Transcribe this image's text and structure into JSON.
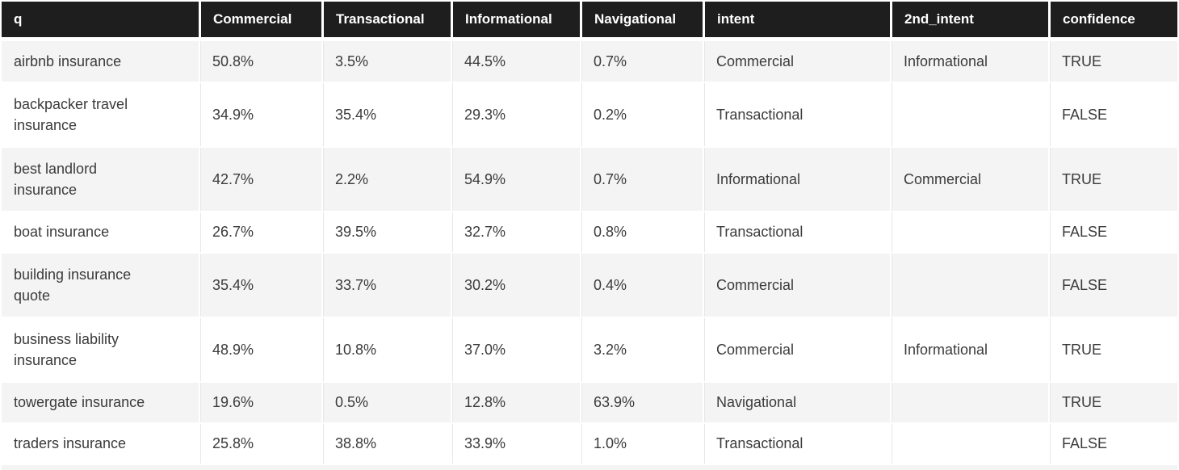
{
  "colors": {
    "header_bg": "#1e1e1e",
    "header_text": "#ffffff",
    "row_alt_bg": "#f4f4f4",
    "row_bg": "#ffffff",
    "cell_text": "#3b3b3b",
    "divider": "#e7e7e7"
  },
  "chart_data": {
    "type": "table",
    "title": "",
    "columns": [
      "q",
      "Commercial",
      "Transactional",
      "Informational",
      "Navigational",
      "intent",
      "2nd_intent",
      "confidence"
    ],
    "rows": [
      {
        "q": "airbnb insurance",
        "commercial": "50.8%",
        "transactional": "3.5%",
        "informational": "44.5%",
        "navigational": "0.7%",
        "intent": "Commercial",
        "second_intent": "Informational",
        "confidence": "TRUE"
      },
      {
        "q": "backpacker travel insurance",
        "commercial": "34.9%",
        "transactional": "35.4%",
        "informational": "29.3%",
        "navigational": "0.2%",
        "intent": "Transactional",
        "second_intent": "",
        "confidence": "FALSE"
      },
      {
        "q": "best landlord insurance",
        "commercial": "42.7%",
        "transactional": "2.2%",
        "informational": "54.9%",
        "navigational": "0.7%",
        "intent": "Informational",
        "second_intent": "Commercial",
        "confidence": "TRUE"
      },
      {
        "q": "boat insurance",
        "commercial": "26.7%",
        "transactional": "39.5%",
        "informational": "32.7%",
        "navigational": "0.8%",
        "intent": "Transactional",
        "second_intent": "",
        "confidence": "FALSE"
      },
      {
        "q": "building insurance quote",
        "commercial": "35.4%",
        "transactional": "33.7%",
        "informational": "30.2%",
        "navigational": "0.4%",
        "intent": "Commercial",
        "second_intent": "",
        "confidence": "FALSE"
      },
      {
        "q": "business liability insurance",
        "commercial": "48.9%",
        "transactional": "10.8%",
        "informational": "37.0%",
        "navigational": "3.2%",
        "intent": "Commercial",
        "second_intent": "Informational",
        "confidence": "TRUE"
      },
      {
        "q": "towergate insurance",
        "commercial": "19.6%",
        "transactional": "0.5%",
        "informational": "12.8%",
        "navigational": "63.9%",
        "intent": "Navigational",
        "second_intent": "",
        "confidence": "TRUE"
      },
      {
        "q": "traders insurance",
        "commercial": "25.8%",
        "transactional": "38.8%",
        "informational": "33.9%",
        "navigational": "1.0%",
        "intent": "Transactional",
        "second_intent": "",
        "confidence": "FALSE"
      }
    ]
  }
}
